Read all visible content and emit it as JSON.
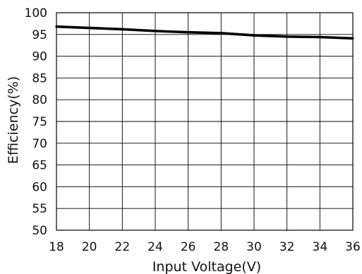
{
  "chart_data": {
    "type": "line",
    "xlabel": "Input Voltage(V)",
    "ylabel": "Efficiency(%)",
    "xlim": [
      18,
      36
    ],
    "ylim": [
      50,
      100
    ],
    "x_ticks": [
      18,
      20,
      22,
      24,
      26,
      28,
      30,
      32,
      34,
      36
    ],
    "y_ticks": [
      50,
      55,
      60,
      65,
      70,
      75,
      80,
      85,
      90,
      95,
      100
    ],
    "grid": true,
    "legend": "none",
    "series": [
      {
        "x": [
          18,
          20,
          22,
          24,
          26,
          28,
          30,
          32,
          34,
          36
        ],
        "y": [
          96.8,
          96.5,
          96.2,
          95.8,
          95.5,
          95.3,
          94.8,
          94.5,
          94.4,
          94.1
        ],
        "color": "#000000"
      }
    ]
  }
}
